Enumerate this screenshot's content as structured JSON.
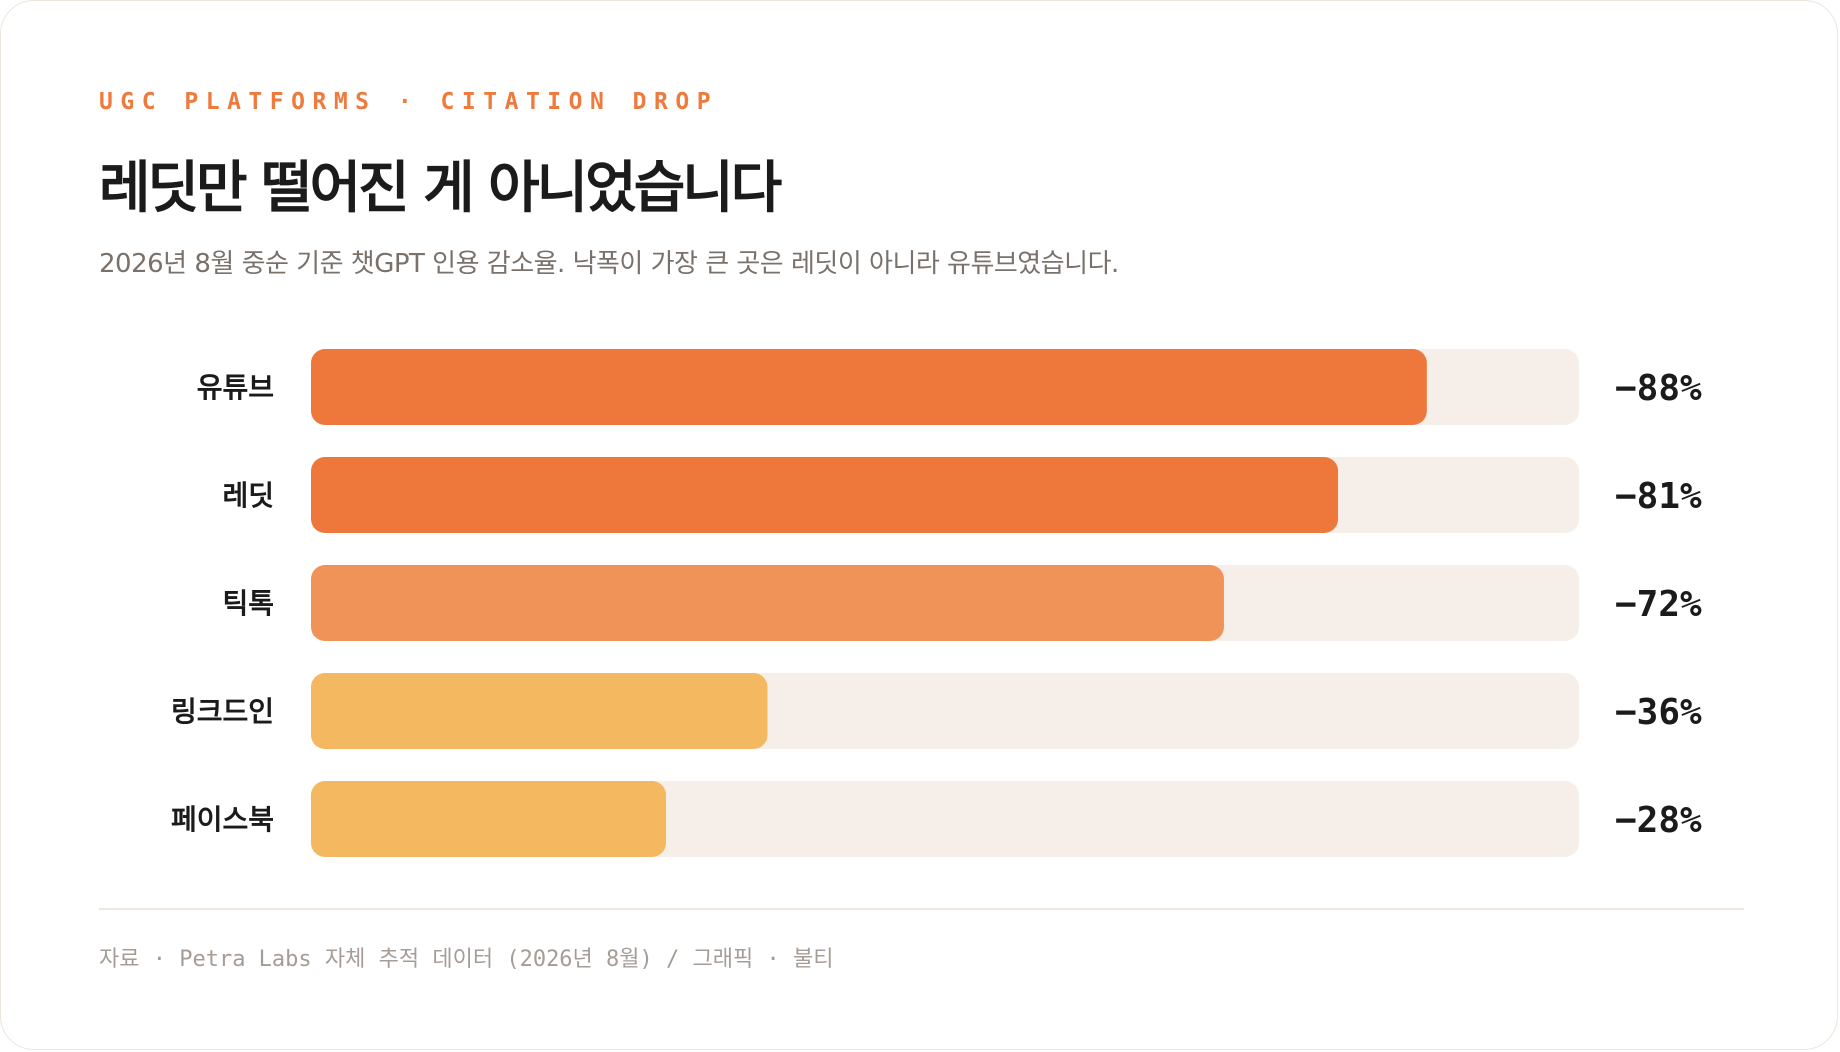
{
  "eyebrow": "UGC PLATFORMS · CITATION DROP",
  "title": "레딧만 떨어진 게 아니었습니다",
  "subtitle": "2026년 8월 중순 기준 챗GPT 인용 감소율. 낙폭이 가장 큰 곳은 레딧이 아니라 유튜브였습니다.",
  "footer": "자료 · Petra Labs 자체 추적 데이터 (2026년 8월) / 그래픽 · 불티",
  "colors": {
    "track": "#f6efe9",
    "orange": "#ee783c",
    "light_orange": "#f09358",
    "amber": "#f3b860"
  },
  "chart_data": {
    "type": "bar",
    "orientation": "horizontal",
    "categories": [
      "유튜브",
      "레딧",
      "틱톡",
      "링크드인",
      "페이스북"
    ],
    "values": [
      -88,
      -81,
      -72,
      -36,
      -28
    ],
    "value_labels": [
      "−88%",
      "−81%",
      "−72%",
      "−36%",
      "−28%"
    ],
    "bar_colors": [
      "#ee783c",
      "#ee783c",
      "#f09358",
      "#f3b860",
      "#f3b860"
    ],
    "xlim": [
      0,
      100
    ],
    "title": "레딧만 떨어진 게 아니었습니다",
    "xlabel": "",
    "ylabel": ""
  }
}
